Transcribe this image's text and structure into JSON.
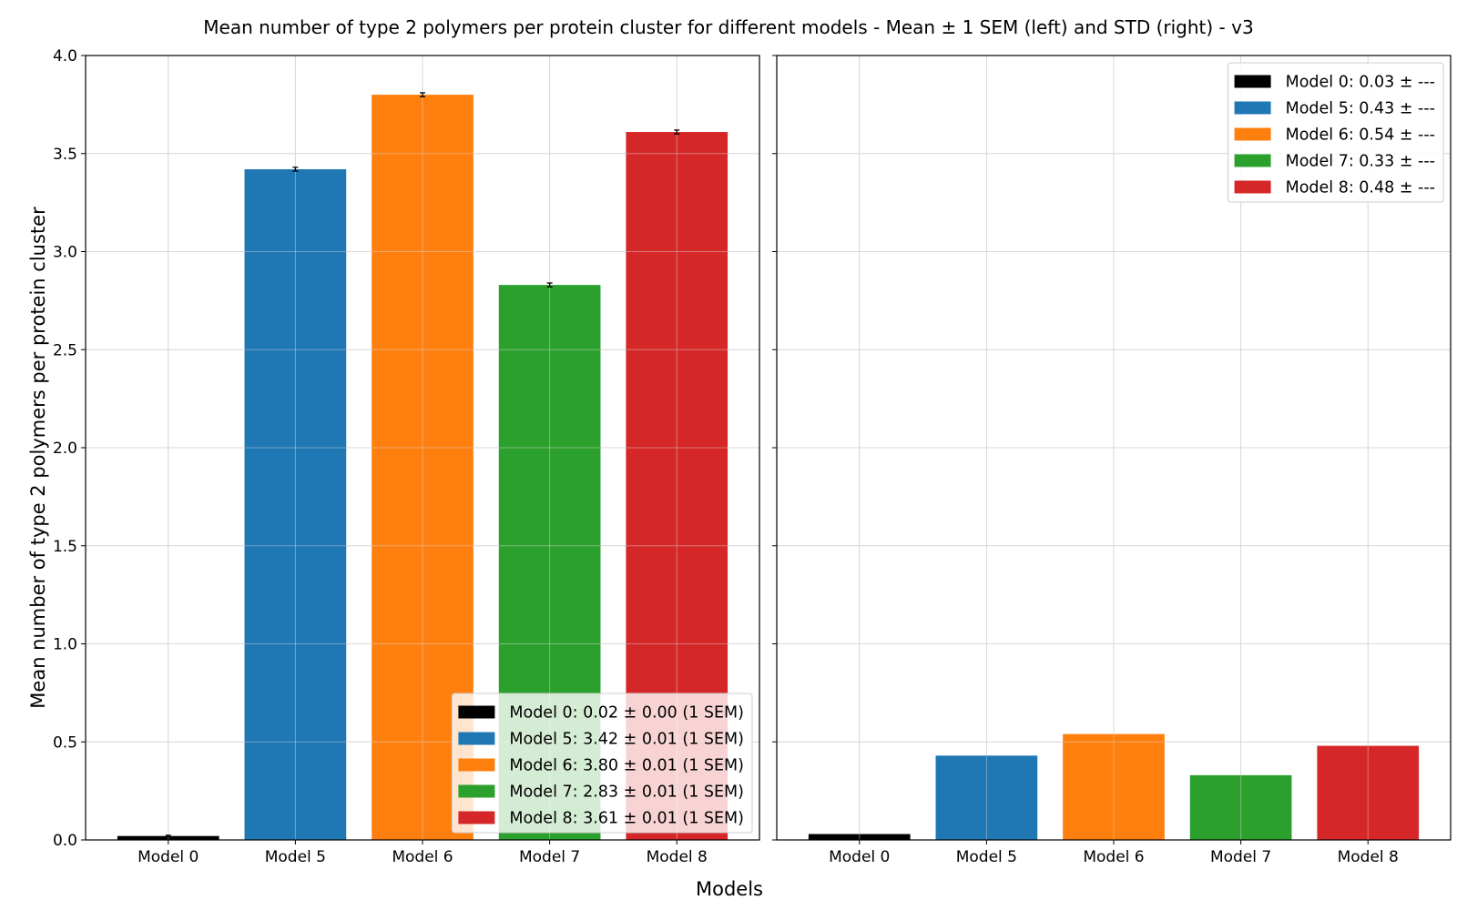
{
  "chart_data": {
    "title": "Mean number of type 2 polymers per protein cluster for different models - Mean ± 1 SEM (left) and STD (right) - v3",
    "xlabel": "Models",
    "ylabel": "Mean number of type 2 polymers per protein cluster",
    "panels": [
      {
        "type": "bar",
        "categories": [
          "Model 0",
          "Model 5",
          "Model 6",
          "Model 7",
          "Model 8"
        ],
        "values": [
          0.02,
          3.42,
          3.8,
          2.83,
          3.61
        ],
        "errors": [
          0.004,
          0.01,
          0.01,
          0.01,
          0.01
        ],
        "colors": [
          "#000000",
          "#1f77b4",
          "#ff7f0e",
          "#2ca02c",
          "#d62728"
        ],
        "ylim": [
          0,
          4.0
        ],
        "yticks": [
          "0.0",
          "0.5",
          "1.0",
          "1.5",
          "2.0",
          "2.5",
          "3.0",
          "3.5",
          "4.0"
        ],
        "grid": true,
        "legend_position": "lower-right",
        "legend": [
          "Model 0: 0.02 ± 0.00 (1 SEM)",
          "Model 5: 3.42 ± 0.01 (1 SEM)",
          "Model 6: 3.80 ± 0.01 (1 SEM)",
          "Model 7: 2.83 ± 0.01 (1 SEM)",
          "Model 8: 3.61 ± 0.01 (1 SEM)"
        ]
      },
      {
        "type": "bar",
        "categories": [
          "Model 0",
          "Model 5",
          "Model 6",
          "Model 7",
          "Model 8"
        ],
        "values": [
          0.03,
          0.43,
          0.54,
          0.33,
          0.48
        ],
        "colors": [
          "#000000",
          "#1f77b4",
          "#ff7f0e",
          "#2ca02c",
          "#d62728"
        ],
        "ylim": [
          0,
          4.0
        ],
        "shared_y": true,
        "grid": true,
        "legend_position": "top-right",
        "legend": [
          "Model 0: 0.03 ± ---",
          "Model 5: 0.43 ± ---",
          "Model 6: 0.54 ± ---",
          "Model 7: 0.33 ± ---",
          "Model 8: 0.48 ± ---"
        ]
      }
    ]
  }
}
